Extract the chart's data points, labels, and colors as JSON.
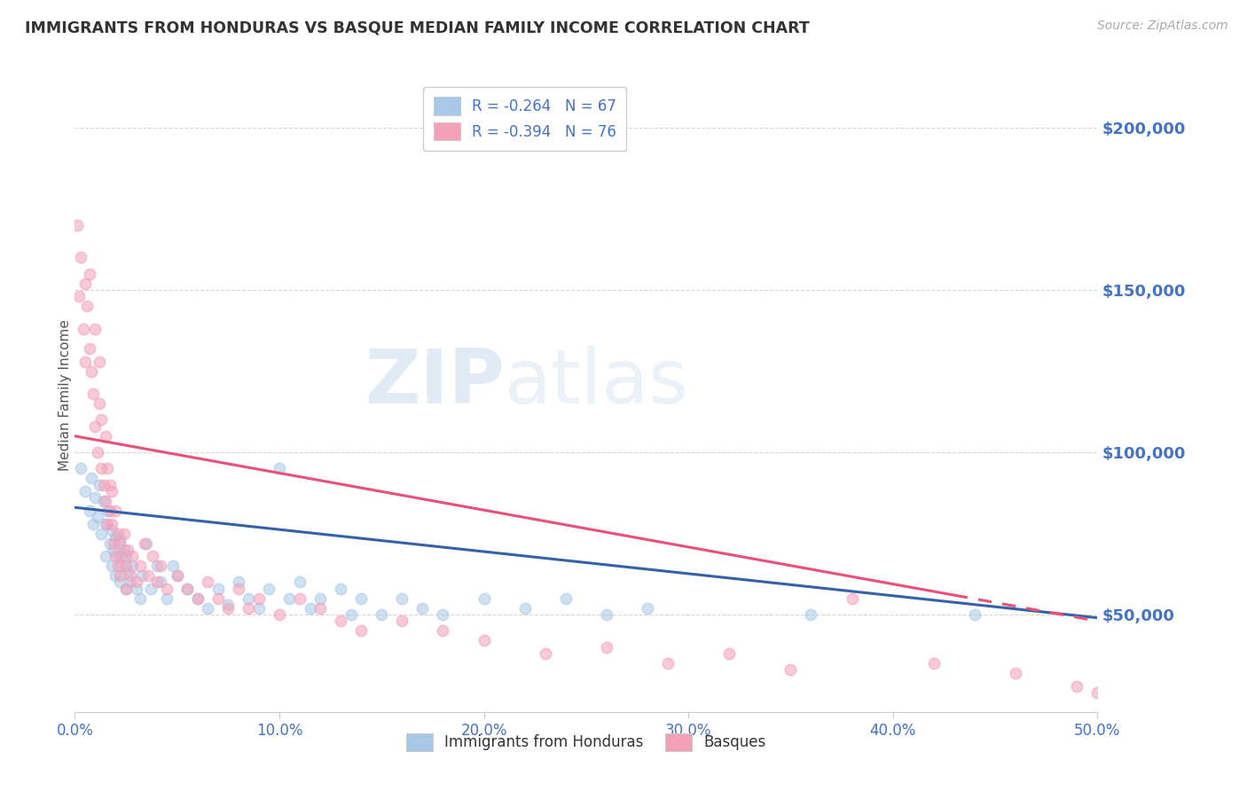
{
  "title": "IMMIGRANTS FROM HONDURAS VS BASQUE MEDIAN FAMILY INCOME CORRELATION CHART",
  "source_text": "Source: ZipAtlas.com",
  "ylabel": "Median Family Income",
  "xlim": [
    0.0,
    0.5
  ],
  "ylim": [
    20000,
    215000
  ],
  "yticks": [
    50000,
    100000,
    150000,
    200000
  ],
  "ytick_labels": [
    "$50,000",
    "$100,000",
    "$150,000",
    "$200,000"
  ],
  "xticks": [
    0.0,
    0.1,
    0.2,
    0.3,
    0.4,
    0.5
  ],
  "xtick_labels": [
    "0.0%",
    "10.0%",
    "20.0%",
    "30.0%",
    "40.0%",
    "50.0%"
  ],
  "background_color": "#ffffff",
  "grid_color": "#cccccc",
  "legend_entries": [
    {
      "label": "R = -0.264   N = 67",
      "color": "#a8c8e8",
      "series": "honduras"
    },
    {
      "label": "R = -0.394   N = 76",
      "color": "#f4a0b8",
      "series": "basque"
    }
  ],
  "honduras_scatter": [
    [
      0.003,
      95000
    ],
    [
      0.005,
      88000
    ],
    [
      0.007,
      82000
    ],
    [
      0.008,
      92000
    ],
    [
      0.009,
      78000
    ],
    [
      0.01,
      86000
    ],
    [
      0.011,
      80000
    ],
    [
      0.012,
      90000
    ],
    [
      0.013,
      75000
    ],
    [
      0.014,
      85000
    ],
    [
      0.015,
      78000
    ],
    [
      0.015,
      68000
    ],
    [
      0.016,
      82000
    ],
    [
      0.017,
      72000
    ],
    [
      0.018,
      76000
    ],
    [
      0.018,
      65000
    ],
    [
      0.019,
      70000
    ],
    [
      0.02,
      74000
    ],
    [
      0.02,
      62000
    ],
    [
      0.021,
      68000
    ],
    [
      0.022,
      73000
    ],
    [
      0.022,
      60000
    ],
    [
      0.023,
      65000
    ],
    [
      0.024,
      70000
    ],
    [
      0.025,
      68000
    ],
    [
      0.025,
      58000
    ],
    [
      0.026,
      63000
    ],
    [
      0.027,
      60000
    ],
    [
      0.028,
      65000
    ],
    [
      0.03,
      58000
    ],
    [
      0.032,
      55000
    ],
    [
      0.033,
      62000
    ],
    [
      0.035,
      72000
    ],
    [
      0.037,
      58000
    ],
    [
      0.04,
      65000
    ],
    [
      0.042,
      60000
    ],
    [
      0.045,
      55000
    ],
    [
      0.048,
      65000
    ],
    [
      0.05,
      62000
    ],
    [
      0.055,
      58000
    ],
    [
      0.06,
      55000
    ],
    [
      0.065,
      52000
    ],
    [
      0.07,
      58000
    ],
    [
      0.075,
      53000
    ],
    [
      0.08,
      60000
    ],
    [
      0.085,
      55000
    ],
    [
      0.09,
      52000
    ],
    [
      0.095,
      58000
    ],
    [
      0.1,
      95000
    ],
    [
      0.105,
      55000
    ],
    [
      0.11,
      60000
    ],
    [
      0.115,
      52000
    ],
    [
      0.12,
      55000
    ],
    [
      0.13,
      58000
    ],
    [
      0.135,
      50000
    ],
    [
      0.14,
      55000
    ],
    [
      0.15,
      50000
    ],
    [
      0.16,
      55000
    ],
    [
      0.17,
      52000
    ],
    [
      0.18,
      50000
    ],
    [
      0.2,
      55000
    ],
    [
      0.22,
      52000
    ],
    [
      0.24,
      55000
    ],
    [
      0.26,
      50000
    ],
    [
      0.28,
      52000
    ],
    [
      0.36,
      50000
    ],
    [
      0.44,
      50000
    ]
  ],
  "basque_scatter": [
    [
      0.001,
      170000
    ],
    [
      0.002,
      148000
    ],
    [
      0.003,
      160000
    ],
    [
      0.004,
      138000
    ],
    [
      0.005,
      152000
    ],
    [
      0.005,
      128000
    ],
    [
      0.006,
      145000
    ],
    [
      0.007,
      132000
    ],
    [
      0.007,
      155000
    ],
    [
      0.008,
      125000
    ],
    [
      0.009,
      118000
    ],
    [
      0.01,
      138000
    ],
    [
      0.01,
      108000
    ],
    [
      0.011,
      100000
    ],
    [
      0.012,
      115000
    ],
    [
      0.012,
      128000
    ],
    [
      0.013,
      95000
    ],
    [
      0.013,
      110000
    ],
    [
      0.014,
      90000
    ],
    [
      0.015,
      105000
    ],
    [
      0.015,
      85000
    ],
    [
      0.016,
      95000
    ],
    [
      0.016,
      78000
    ],
    [
      0.017,
      90000
    ],
    [
      0.017,
      82000
    ],
    [
      0.018,
      78000
    ],
    [
      0.018,
      88000
    ],
    [
      0.019,
      72000
    ],
    [
      0.02,
      82000
    ],
    [
      0.02,
      68000
    ],
    [
      0.021,
      75000
    ],
    [
      0.021,
      65000
    ],
    [
      0.022,
      72000
    ],
    [
      0.022,
      62000
    ],
    [
      0.023,
      68000
    ],
    [
      0.024,
      75000
    ],
    [
      0.025,
      65000
    ],
    [
      0.025,
      58000
    ],
    [
      0.026,
      70000
    ],
    [
      0.027,
      62000
    ],
    [
      0.028,
      68000
    ],
    [
      0.03,
      60000
    ],
    [
      0.032,
      65000
    ],
    [
      0.034,
      72000
    ],
    [
      0.036,
      62000
    ],
    [
      0.038,
      68000
    ],
    [
      0.04,
      60000
    ],
    [
      0.042,
      65000
    ],
    [
      0.045,
      58000
    ],
    [
      0.05,
      62000
    ],
    [
      0.055,
      58000
    ],
    [
      0.06,
      55000
    ],
    [
      0.065,
      60000
    ],
    [
      0.07,
      55000
    ],
    [
      0.075,
      52000
    ],
    [
      0.08,
      58000
    ],
    [
      0.085,
      52000
    ],
    [
      0.09,
      55000
    ],
    [
      0.1,
      50000
    ],
    [
      0.11,
      55000
    ],
    [
      0.12,
      52000
    ],
    [
      0.13,
      48000
    ],
    [
      0.14,
      45000
    ],
    [
      0.16,
      48000
    ],
    [
      0.18,
      45000
    ],
    [
      0.2,
      42000
    ],
    [
      0.23,
      38000
    ],
    [
      0.26,
      40000
    ],
    [
      0.29,
      35000
    ],
    [
      0.32,
      38000
    ],
    [
      0.35,
      33000
    ],
    [
      0.38,
      55000
    ],
    [
      0.42,
      35000
    ],
    [
      0.46,
      32000
    ],
    [
      0.49,
      28000
    ],
    [
      0.5,
      26000
    ]
  ],
  "honduras_line": {
    "x0": 0.0,
    "x1": 0.5,
    "y0": 83000,
    "y1": 49000,
    "color": "#3560a8",
    "lw": 2.2
  },
  "basque_line": {
    "x0": 0.0,
    "x1": 0.5,
    "y0": 105000,
    "y1": 48000,
    "color": "#e8507a",
    "lw": 2.2,
    "solid_to": 0.43,
    "dashed_to": 0.5
  },
  "title_color": "#333333",
  "axis_color": "#4472c4",
  "tick_color": "#4472c4",
  "scatter_alpha": 0.55,
  "scatter_size": 80,
  "scatter_edge_width": 1.2
}
